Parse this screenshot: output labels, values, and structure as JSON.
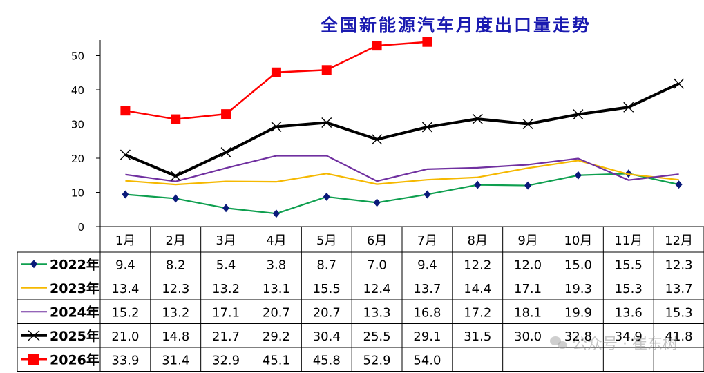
{
  "chart_data": {
    "type": "line",
    "title": "全国新能源汽车月度出口量走势",
    "xlabel": "",
    "ylabel": "",
    "ylim": [
      0,
      50
    ],
    "yticks": [
      0,
      10,
      20,
      30,
      40,
      50
    ],
    "grid": false,
    "legend": "table-left",
    "categories": [
      "1月",
      "2月",
      "3月",
      "4月",
      "5月",
      "6月",
      "7月",
      "8月",
      "9月",
      "10月",
      "11月",
      "12月"
    ],
    "series": [
      {
        "name": "2022年",
        "color": "#0e9f4f",
        "marker": "diamond",
        "marker_color": "#0a1a7a",
        "values": [
          9.4,
          8.2,
          5.4,
          3.8,
          8.7,
          7.0,
          9.4,
          12.2,
          12.0,
          15.0,
          15.5,
          12.3
        ],
        "labels": [
          "9.4",
          "8.2",
          "5.4",
          "3.8",
          "8.7",
          "7.0",
          "9.4",
          "12.2",
          "12.0",
          "15.0",
          "15.5",
          "12.3"
        ]
      },
      {
        "name": "2023年",
        "color": "#f5b800",
        "marker": "none",
        "values": [
          13.4,
          12.3,
          13.2,
          13.1,
          15.5,
          12.4,
          13.7,
          14.4,
          17.1,
          19.3,
          15.3,
          13.7
        ],
        "labels": [
          "13.4",
          "12.3",
          "13.2",
          "13.1",
          "15.5",
          "12.4",
          "13.7",
          "14.4",
          "17.1",
          "19.3",
          "15.3",
          "13.7"
        ]
      },
      {
        "name": "2024年",
        "color": "#7030a0",
        "marker": "none",
        "values": [
          15.2,
          13.2,
          17.1,
          20.7,
          20.7,
          13.3,
          16.8,
          17.2,
          18.1,
          19.9,
          13.6,
          15.3
        ],
        "labels": [
          "15.2",
          "13.2",
          "17.1",
          "20.7",
          "20.7",
          "13.3",
          "16.8",
          "17.2",
          "18.1",
          "19.9",
          "13.6",
          "15.3"
        ]
      },
      {
        "name": "2025年",
        "color": "#000000",
        "marker": "x",
        "values": [
          21.0,
          14.8,
          21.7,
          29.2,
          30.4,
          25.5,
          29.1,
          31.5,
          30.0,
          32.8,
          34.9,
          41.8
        ],
        "labels": [
          "21.0",
          "14.8",
          "21.7",
          "29.2",
          "30.4",
          "25.5",
          "29.1",
          "31.5",
          "30.0",
          "32.8",
          "34.9",
          "41.8"
        ]
      },
      {
        "name": "2026年",
        "color": "#ff0000",
        "marker": "square",
        "values": [
          33.9,
          31.4,
          32.9,
          45.1,
          45.8,
          52.9,
          54.0,
          null,
          null,
          null,
          null,
          null
        ],
        "labels": [
          "33.9",
          "31.4",
          "32.9",
          "45.1",
          "45.8",
          "52.9",
          "54.0",
          "",
          "",
          "",
          "",
          ""
        ]
      }
    ]
  },
  "watermark": {
    "text": "公众号 · 崔东树",
    "icon": "wechat-icon"
  }
}
